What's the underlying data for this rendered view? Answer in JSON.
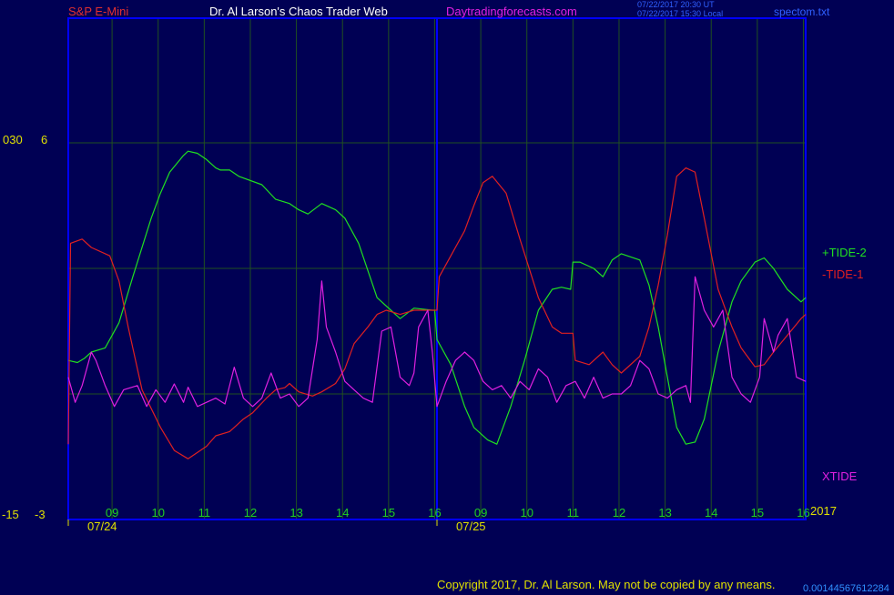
{
  "header": {
    "symbol": "S&P E-Mini",
    "author": "Dr. Al Larson's Chaos Trader Web",
    "site": "Daytradingforecasts.com",
    "time_ut": "07/22/2017 20:30 UT",
    "time_local": "07/22/2017 15:30 Local",
    "file": "spectom.txt"
  },
  "axes": {
    "left_top_a": "030",
    "left_top_b": "6",
    "left_bottom_a": "-15",
    "left_bottom_b": "-3",
    "year": "2017"
  },
  "footer": {
    "copyright": "Copyright 2017, Dr. Al Larson. May not be copied by any means.",
    "code": "0.00144567612284"
  },
  "colors": {
    "background": "#000054",
    "frame": "#0000ff",
    "grid": "#205020",
    "tide2": "#20e020",
    "tide1": "#e02020",
    "xtide": "#e020e0",
    "hour_labels": "#20d020",
    "title_red": "#e03030",
    "title_white": "#ffffff",
    "site_magenta": "#e020e0",
    "tick_yellow": "#e0e000"
  },
  "chart_data": {
    "type": "line",
    "x_dates": [
      "07/24",
      "07/25"
    ],
    "x_hour_ticks": [
      "09",
      "10",
      "11",
      "12",
      "13",
      "14",
      "15",
      "16",
      "09",
      "10",
      "11",
      "12",
      "13",
      "14",
      "15",
      "16"
    ],
    "xlim": [
      0,
      16
    ],
    "ylim_tide": [
      -3,
      6
    ],
    "ylim_xtide": [
      -15,
      30
    ],
    "grid": true,
    "series": [
      {
        "name": "+TIDE-2",
        "color": "#20e020",
        "x": [
          0,
          0.2,
          0.35,
          0.5,
          0.8,
          1.1,
          1.4,
          1.8,
          2.0,
          2.2,
          2.5,
          2.6,
          2.8,
          3.0,
          3.2,
          3.3,
          3.5,
          3.7,
          4.2,
          4.5,
          4.8,
          5.0,
          5.2,
          5.5,
          5.8,
          6.0,
          6.3,
          6.7,
          7.0,
          7.2,
          7.5,
          7.9,
          7.95,
          8.0,
          8.3,
          8.6,
          8.8,
          9.1,
          9.3,
          9.6,
          9.9,
          10.2,
          10.5,
          10.7,
          10.9,
          10.95,
          11.1,
          11.4,
          11.6,
          11.8,
          12.0,
          12.4,
          12.6,
          12.8,
          13.0,
          13.2,
          13.4,
          13.6,
          13.8,
          14.1,
          14.4,
          14.6,
          14.9,
          15.1,
          15.3,
          15.6,
          15.9,
          16.0
        ],
        "y": [
          0.8,
          0.75,
          0.85,
          1.0,
          1.1,
          1.7,
          2.8,
          4.2,
          4.8,
          5.3,
          5.7,
          5.8,
          5.75,
          5.6,
          5.4,
          5.35,
          5.35,
          5.2,
          5.0,
          4.65,
          4.55,
          4.4,
          4.3,
          4.55,
          4.4,
          4.2,
          3.6,
          2.3,
          2.0,
          1.8,
          2.05,
          2.0,
          2.0,
          1.3,
          0.7,
          -0.3,
          -0.8,
          -1.1,
          -1.2,
          -0.3,
          0.8,
          2.0,
          2.5,
          2.55,
          2.5,
          3.15,
          3.15,
          3.0,
          2.8,
          3.2,
          3.35,
          3.2,
          2.6,
          1.6,
          0.4,
          -0.8,
          -1.2,
          -1.15,
          -0.6,
          1.0,
          2.2,
          2.7,
          3.15,
          3.25,
          3.0,
          2.5,
          2.2,
          2.3
        ]
      },
      {
        "name": "-TIDE-1",
        "color": "#e02020",
        "x": [
          0,
          0.05,
          0.3,
          0.5,
          0.9,
          1.1,
          1.3,
          1.6,
          2.0,
          2.3,
          2.6,
          2.8,
          3.0,
          3.2,
          3.5,
          3.8,
          4.0,
          4.3,
          4.5,
          4.7,
          4.8,
          5.0,
          5.3,
          5.5,
          5.8,
          6.0,
          6.2,
          6.5,
          6.7,
          6.9,
          7.2,
          7.5,
          7.9,
          8.0,
          8.05,
          8.3,
          8.6,
          8.8,
          9.0,
          9.2,
          9.5,
          9.8,
          10.2,
          10.5,
          10.7,
          10.95,
          11.0,
          11.3,
          11.6,
          11.8,
          12.0,
          12.4,
          12.6,
          12.8,
          13.0,
          13.2,
          13.4,
          13.6,
          13.8,
          14.1,
          14.4,
          14.6,
          14.9,
          15.1,
          15.3,
          15.6,
          15.9,
          16.0
        ],
        "y": [
          -1.2,
          3.6,
          3.7,
          3.5,
          3.3,
          2.7,
          1.6,
          0.1,
          -0.8,
          -1.35,
          -1.55,
          -1.4,
          -1.25,
          -1.0,
          -0.9,
          -0.6,
          -0.45,
          -0.1,
          0.1,
          0.15,
          0.25,
          0.05,
          -0.05,
          0.05,
          0.25,
          0.6,
          1.2,
          1.6,
          1.9,
          2.0,
          1.9,
          2.0,
          2.0,
          2.0,
          2.8,
          3.3,
          3.9,
          4.5,
          5.05,
          5.2,
          4.8,
          3.7,
          2.3,
          1.6,
          1.45,
          1.45,
          0.8,
          0.7,
          1.0,
          0.7,
          0.5,
          0.9,
          1.6,
          2.6,
          3.8,
          5.2,
          5.4,
          5.3,
          4.2,
          2.5,
          1.6,
          1.1,
          0.65,
          0.7,
          1.0,
          1.4,
          1.8,
          1.9
        ]
      },
      {
        "name": "XTIDE",
        "color": "#e020e0",
        "x": [
          0,
          0.15,
          0.3,
          0.5,
          0.6,
          0.8,
          1.0,
          1.2,
          1.5,
          1.7,
          1.9,
          2.1,
          2.3,
          2.5,
          2.6,
          2.8,
          3.0,
          3.2,
          3.4,
          3.6,
          3.8,
          4.0,
          4.2,
          4.4,
          4.6,
          4.8,
          5.0,
          5.2,
          5.4,
          5.5,
          5.6,
          5.8,
          6.0,
          6.2,
          6.4,
          6.6,
          6.8,
          7.0,
          7.2,
          7.4,
          7.5,
          7.6,
          7.8,
          7.9,
          8.0,
          8.2,
          8.4,
          8.6,
          8.8,
          9.0,
          9.2,
          9.4,
          9.6,
          9.8,
          10.0,
          10.2,
          10.4,
          10.6,
          10.8,
          11.0,
          11.2,
          11.4,
          11.6,
          11.8,
          12.0,
          12.2,
          12.4,
          12.6,
          12.8,
          13.0,
          13.2,
          13.4,
          13.5,
          13.6,
          13.8,
          14.0,
          14.2,
          14.4,
          14.6,
          14.8,
          15.0,
          15.1,
          15.3,
          15.4,
          15.6,
          15.8,
          16.0
        ],
        "y": [
          2,
          -1,
          1,
          5,
          4,
          1,
          -1.5,
          0.5,
          1,
          -1.5,
          0.5,
          -1,
          1.2,
          -1,
          0.8,
          -1.5,
          -1,
          -0.5,
          -1.2,
          3.2,
          -0.5,
          -1.5,
          -0.5,
          2.5,
          -0.5,
          0,
          -1.5,
          -0.5,
          6.5,
          13.5,
          8,
          5,
          1.5,
          0.5,
          -0.5,
          -1,
          7.5,
          8,
          2,
          1,
          2.5,
          8,
          10,
          5,
          -1.5,
          1.5,
          4,
          5,
          4,
          1.5,
          0.5,
          1,
          -0.5,
          1.5,
          0.5,
          3,
          2,
          -1,
          1,
          1.5,
          -0.5,
          2,
          -0.5,
          0,
          0,
          1,
          4,
          3,
          0,
          -0.5,
          0.5,
          1,
          -1,
          14,
          10,
          8,
          10,
          2,
          0,
          -1,
          2,
          9,
          5,
          7,
          9,
          2,
          1.5
        ]
      }
    ]
  }
}
